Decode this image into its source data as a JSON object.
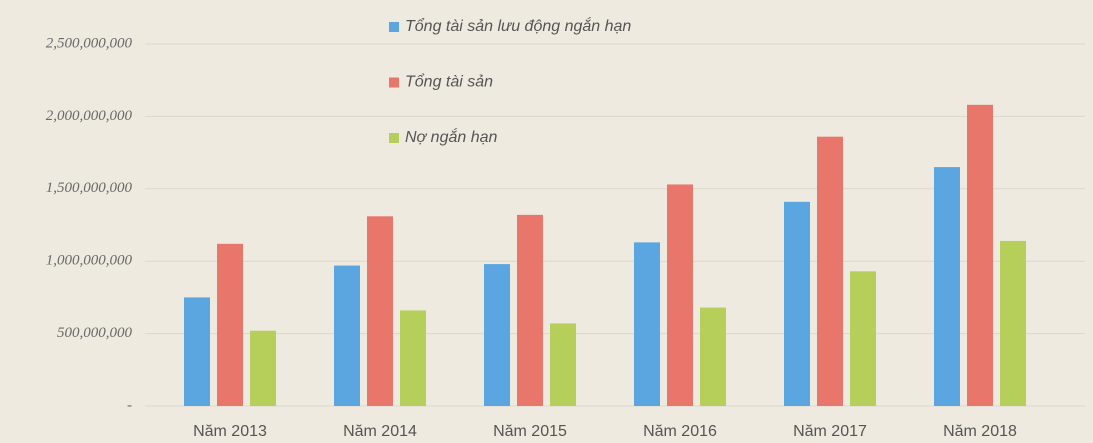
{
  "chart_data": {
    "type": "bar",
    "categories": [
      "Năm 2013",
      "Năm 2014",
      "Năm 2015",
      "Năm 2016",
      "Năm 2017",
      "Năm 2018"
    ],
    "series": [
      {
        "name": "Tổng tài sản lưu động ngắn hạn",
        "color": "#5ba6e0",
        "values": [
          750000000,
          970000000,
          980000000,
          1130000000,
          1410000000,
          1650000000
        ]
      },
      {
        "name": "Tổng tài sản",
        "color": "#e8766b",
        "values": [
          1120000000,
          1310000000,
          1320000000,
          1530000000,
          1860000000,
          2080000000
        ]
      },
      {
        "name": "Nợ ngắn hạn",
        "color": "#b6cf5b",
        "values": [
          520000000,
          660000000,
          570000000,
          680000000,
          930000000,
          1140000000
        ]
      }
    ],
    "ylim": [
      0,
      2500000000
    ],
    "yticks": [
      {
        "value": 0,
        "label": "-"
      },
      {
        "value": 500000000,
        "label": "500,000,000"
      },
      {
        "value": 1000000000,
        "label": "1,000,000,000"
      },
      {
        "value": 1500000000,
        "label": "1,500,000,000"
      },
      {
        "value": 2000000000,
        "label": "2,000,000,000"
      },
      {
        "value": 2500000000,
        "label": "2,500,000,000"
      }
    ],
    "grid": true
  }
}
